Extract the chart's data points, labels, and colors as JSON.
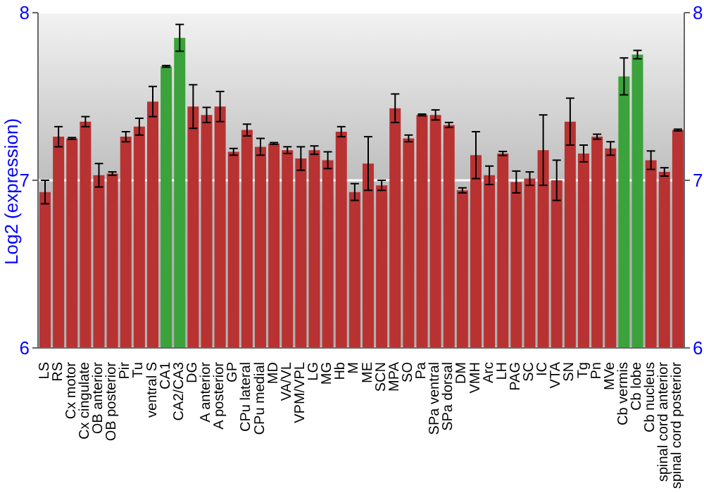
{
  "chart_data": {
    "type": "bar",
    "ylabel": "Log2 (expression)",
    "categories": [
      "LS",
      "RS",
      "Cx motor",
      "Cx cingulate",
      "OB anterior",
      "OB posterior",
      "Pir",
      "Tu",
      "ventral S",
      "CA1",
      "CA2/CA3",
      "DG",
      "A anterior",
      "A posterior",
      "GP",
      "CPu lateral",
      "CPu medial",
      "MD",
      "VA/VL",
      "VPM/VPL",
      "LG",
      "MG",
      "Hb",
      "M",
      "ME",
      "SCN",
      "MPA",
      "SO",
      "Pa",
      "SPa ventral",
      "SPa dorsal",
      "DM",
      "VMH",
      "Arc",
      "LH",
      "PAG",
      "SC",
      "IC",
      "VTA",
      "SN",
      "Tg",
      "Pn",
      "MVe",
      "Cb vermis",
      "Cb lobe",
      "Cb nucleus",
      "spinal cord anterior",
      "spinal cord posterior"
    ],
    "values": [
      6.93,
      7.26,
      7.25,
      7.35,
      7.03,
      7.04,
      7.26,
      7.32,
      7.47,
      7.68,
      7.85,
      7.44,
      7.39,
      7.44,
      7.17,
      7.3,
      7.2,
      7.22,
      7.18,
      7.13,
      7.18,
      7.12,
      7.29,
      6.93,
      7.1,
      6.97,
      7.43,
      7.25,
      7.39,
      7.39,
      7.33,
      6.94,
      7.15,
      7.03,
      7.16,
      6.99,
      7.01,
      7.18,
      7.0,
      7.35,
      7.16,
      7.26,
      7.19,
      7.62,
      7.75,
      7.12,
      7.05,
      7.3
    ],
    "errors": [
      0.07,
      0.06,
      0.005,
      0.03,
      0.07,
      0.01,
      0.03,
      0.05,
      0.09,
      0.005,
      0.08,
      0.13,
      0.045,
      0.09,
      0.02,
      0.035,
      0.05,
      0.005,
      0.02,
      0.07,
      0.025,
      0.05,
      0.03,
      0.05,
      0.16,
      0.03,
      0.085,
      0.02,
      0.005,
      0.03,
      0.015,
      0.015,
      0.14,
      0.055,
      0.012,
      0.065,
      0.04,
      0.21,
      0.12,
      0.14,
      0.05,
      0.015,
      0.04,
      0.11,
      0.025,
      0.055,
      0.025,
      0.005
    ],
    "colors": [
      "#b83232",
      "#b83232",
      "#b83232",
      "#b83232",
      "#b83232",
      "#b83232",
      "#b83232",
      "#b83232",
      "#b83232",
      "#3ca23c",
      "#3ca23c",
      "#b83232",
      "#b83232",
      "#b83232",
      "#b83232",
      "#b83232",
      "#b83232",
      "#b83232",
      "#b83232",
      "#b83232",
      "#b83232",
      "#b83232",
      "#b83232",
      "#b83232",
      "#b83232",
      "#b83232",
      "#b83232",
      "#b83232",
      "#b83232",
      "#b83232",
      "#b83232",
      "#b83232",
      "#b83232",
      "#b83232",
      "#b83232",
      "#b83232",
      "#b83232",
      "#b83232",
      "#b83232",
      "#b83232",
      "#b83232",
      "#b83232",
      "#b83232",
      "#3ca23c",
      "#3ca23c",
      "#b83232",
      "#b83232",
      "#b83232"
    ],
    "ylim": [
      6,
      8
    ],
    "yticks": [
      6,
      7,
      8
    ],
    "y2lim": [
      6,
      8
    ],
    "y2ticks": [
      6,
      7,
      8
    ],
    "grid": "y"
  }
}
